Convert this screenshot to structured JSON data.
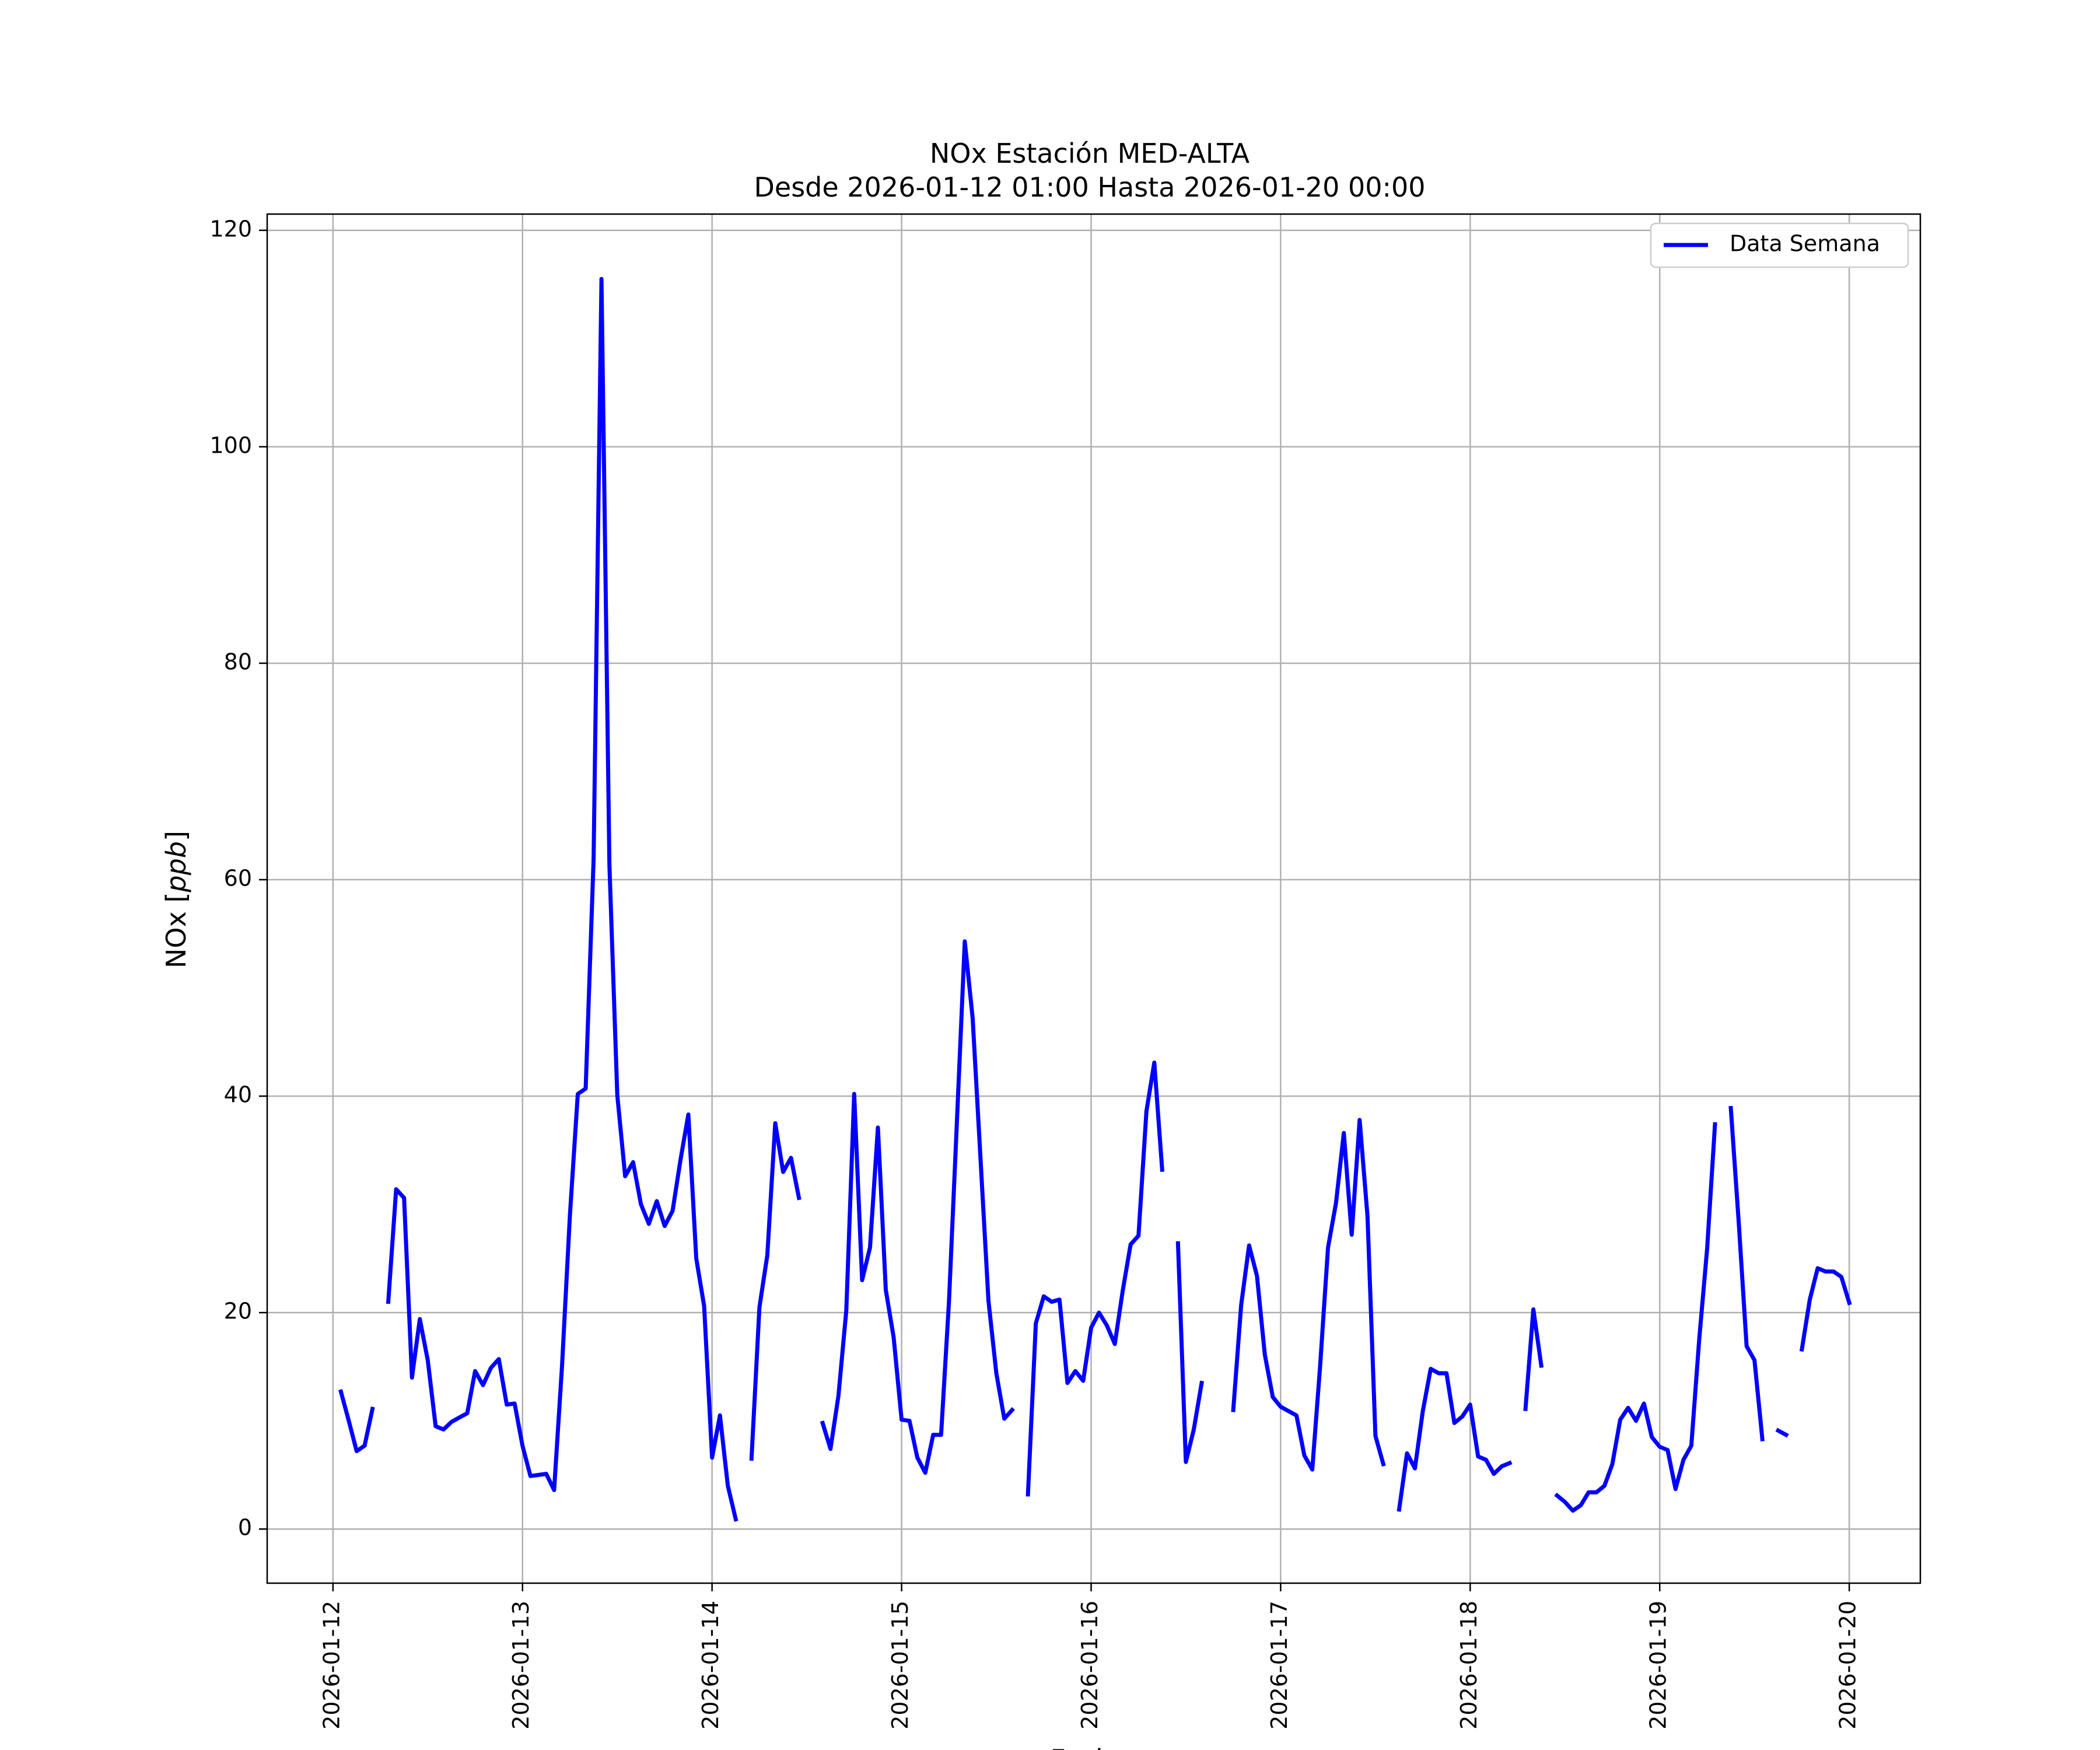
{
  "chart_data": {
    "type": "line",
    "title": "NOx Estación MED-ALTA",
    "subtitle": "Desde 2026-01-12 01:00 Hasta 2026-01-20 00:00",
    "xlabel": "Fecha",
    "ylabel": "NOx [ppb]",
    "ylabel_parts": {
      "prefix": "NOx [",
      "unit": "ppb",
      "suffix": "]"
    },
    "xlim": [
      "2026-01-11T15:40",
      "2026-01-20T09:00"
    ],
    "ylim": [
      -5,
      121.5
    ],
    "x_ticks": [
      "2026-01-12",
      "2026-01-13",
      "2026-01-14",
      "2026-01-15",
      "2026-01-16",
      "2026-01-17",
      "2026-01-18",
      "2026-01-19",
      "2026-01-20"
    ],
    "y_ticks": [
      0,
      20,
      40,
      60,
      80,
      100,
      120
    ],
    "grid": true,
    "legend_position": "upper right",
    "series": [
      {
        "name": "Data Semana",
        "color": "#0000ff",
        "segments": [
          [
            [
              "2026-01-12 01:00",
              12.7
            ],
            [
              "2026-01-12 02:00",
              10.0
            ],
            [
              "2026-01-12 03:00",
              7.2
            ],
            [
              "2026-01-12 04:00",
              7.7
            ],
            [
              "2026-01-12 05:00",
              11.1
            ]
          ],
          [
            [
              "2026-01-12 07:00",
              21.0
            ],
            [
              "2026-01-12 08:00",
              31.4
            ],
            [
              "2026-01-12 09:00",
              30.6
            ],
            [
              "2026-01-12 10:00",
              14.0
            ],
            [
              "2026-01-12 11:00",
              19.4
            ],
            [
              "2026-01-12 12:00",
              15.6
            ],
            [
              "2026-01-12 13:00",
              9.5
            ],
            [
              "2026-01-12 14:00",
              9.2
            ],
            [
              "2026-01-12 15:00",
              9.9
            ],
            [
              "2026-01-12 16:00",
              10.3
            ],
            [
              "2026-01-12 17:00",
              10.7
            ],
            [
              "2026-01-12 18:00",
              14.6
            ],
            [
              "2026-01-12 19:00",
              13.3
            ],
            [
              "2026-01-12 20:00",
              14.9
            ],
            [
              "2026-01-12 21:00",
              15.7
            ],
            [
              "2026-01-12 22:00",
              11.5
            ],
            [
              "2026-01-12 23:00",
              11.6
            ],
            [
              "2026-01-13 00:00",
              7.7
            ],
            [
              "2026-01-13 01:00",
              4.9
            ],
            [
              "2026-01-13 02:00",
              5.0
            ],
            [
              "2026-01-13 03:00",
              5.1
            ],
            [
              "2026-01-13 04:00",
              3.6
            ],
            [
              "2026-01-13 05:00",
              15.0
            ],
            [
              "2026-01-13 06:00",
              29.0
            ],
            [
              "2026-01-13 07:00",
              40.2
            ],
            [
              "2026-01-13 08:00",
              40.7
            ],
            [
              "2026-01-13 09:00",
              61.9
            ],
            [
              "2026-01-13 10:00",
              115.5
            ],
            [
              "2026-01-13 11:00",
              61.4
            ],
            [
              "2026-01-13 12:00",
              40.1
            ],
            [
              "2026-01-13 13:00",
              32.6
            ],
            [
              "2026-01-13 14:00",
              33.9
            ],
            [
              "2026-01-13 15:00",
              30.0
            ],
            [
              "2026-01-13 16:00",
              28.2
            ],
            [
              "2026-01-13 17:00",
              30.3
            ],
            [
              "2026-01-13 18:00",
              28.0
            ],
            [
              "2026-01-13 19:00",
              29.4
            ],
            [
              "2026-01-13 20:00",
              34.1
            ],
            [
              "2026-01-13 21:00",
              38.3
            ],
            [
              "2026-01-13 22:00",
              25.0
            ],
            [
              "2026-01-13 23:00",
              20.6
            ],
            [
              "2026-01-14 00:00",
              6.6
            ],
            [
              "2026-01-14 01:00",
              10.5
            ],
            [
              "2026-01-14 02:00",
              4.0
            ],
            [
              "2026-01-14 03:00",
              0.9
            ]
          ],
          [
            [
              "2026-01-14 05:00",
              6.5
            ],
            [
              "2026-01-14 06:00",
              20.5
            ],
            [
              "2026-01-14 07:00",
              25.3
            ],
            [
              "2026-01-14 08:00",
              37.5
            ],
            [
              "2026-01-14 09:00",
              33.0
            ],
            [
              "2026-01-14 10:00",
              34.3
            ],
            [
              "2026-01-14 11:00",
              30.6
            ]
          ],
          [
            [
              "2026-01-14 14:00",
              9.8
            ],
            [
              "2026-01-14 15:00",
              7.4
            ],
            [
              "2026-01-14 16:00",
              12.3
            ],
            [
              "2026-01-14 17:00",
              20.2
            ],
            [
              "2026-01-14 18:00",
              40.2
            ],
            [
              "2026-01-14 19:00",
              23.0
            ],
            [
              "2026-01-14 20:00",
              26.0
            ],
            [
              "2026-01-14 21:00",
              37.1
            ],
            [
              "2026-01-14 22:00",
              22.1
            ],
            [
              "2026-01-14 23:00",
              17.7
            ],
            [
              "2026-01-15 00:00",
              10.1
            ],
            [
              "2026-01-15 01:00",
              10.0
            ],
            [
              "2026-01-15 02:00",
              6.6
            ],
            [
              "2026-01-15 03:00",
              5.2
            ],
            [
              "2026-01-15 04:00",
              8.7
            ],
            [
              "2026-01-15 05:00",
              8.7
            ],
            [
              "2026-01-15 06:00",
              21.0
            ],
            [
              "2026-01-15 07:00",
              37.5
            ],
            [
              "2026-01-15 08:00",
              54.3
            ],
            [
              "2026-01-15 09:00",
              47.2
            ],
            [
              "2026-01-15 10:00",
              34.1
            ],
            [
              "2026-01-15 11:00",
              21.1
            ],
            [
              "2026-01-15 12:00",
              14.4
            ],
            [
              "2026-01-15 13:00",
              10.2
            ],
            [
              "2026-01-15 14:00",
              11.0
            ]
          ],
          [
            [
              "2026-01-15 16:00",
              3.2
            ],
            [
              "2026-01-15 17:00",
              19.0
            ],
            [
              "2026-01-15 18:00",
              21.5
            ],
            [
              "2026-01-15 19:00",
              21.0
            ],
            [
              "2026-01-15 20:00",
              21.2
            ],
            [
              "2026-01-15 21:00",
              13.5
            ],
            [
              "2026-01-15 22:00",
              14.6
            ],
            [
              "2026-01-15 23:00",
              13.7
            ],
            [
              "2026-01-16 00:00",
              18.6
            ],
            [
              "2026-01-16 01:00",
              20.0
            ],
            [
              "2026-01-16 02:00",
              18.8
            ],
            [
              "2026-01-16 03:00",
              17.1
            ],
            [
              "2026-01-16 04:00",
              22.0
            ],
            [
              "2026-01-16 05:00",
              26.3
            ],
            [
              "2026-01-16 06:00",
              27.1
            ],
            [
              "2026-01-16 07:00",
              38.6
            ],
            [
              "2026-01-16 08:00",
              43.1
            ],
            [
              "2026-01-16 09:00",
              33.2
            ]
          ],
          [
            [
              "2026-01-16 11:00",
              26.4
            ],
            [
              "2026-01-16 12:00",
              6.2
            ],
            [
              "2026-01-16 13:00",
              9.2
            ],
            [
              "2026-01-16 14:00",
              13.5
            ]
          ],
          [
            [
              "2026-01-16 18:00",
              11.0
            ],
            [
              "2026-01-16 19:00",
              20.7
            ],
            [
              "2026-01-16 20:00",
              26.2
            ],
            [
              "2026-01-16 21:00",
              23.4
            ],
            [
              "2026-01-16 22:00",
              16.1
            ],
            [
              "2026-01-16 23:00",
              12.2
            ],
            [
              "2026-01-17 00:00",
              11.3
            ],
            [
              "2026-01-17 01:00",
              10.9
            ],
            [
              "2026-01-17 02:00",
              10.5
            ],
            [
              "2026-01-17 03:00",
              6.8
            ],
            [
              "2026-01-17 04:00",
              5.5
            ],
            [
              "2026-01-17 05:00",
              15.1
            ],
            [
              "2026-01-17 06:00",
              26.0
            ],
            [
              "2026-01-17 07:00",
              30.1
            ],
            [
              "2026-01-17 08:00",
              36.6
            ],
            [
              "2026-01-17 09:00",
              27.2
            ],
            [
              "2026-01-17 10:00",
              37.8
            ],
            [
              "2026-01-17 11:00",
              28.9
            ],
            [
              "2026-01-17 12:00",
              8.6
            ],
            [
              "2026-01-17 13:00",
              6.0
            ]
          ],
          [
            [
              "2026-01-17 15:00",
              1.8
            ],
            [
              "2026-01-17 16:00",
              7.0
            ],
            [
              "2026-01-17 17:00",
              5.6
            ],
            [
              "2026-01-17 18:00",
              10.9
            ],
            [
              "2026-01-17 19:00",
              14.8
            ],
            [
              "2026-01-17 20:00",
              14.4
            ],
            [
              "2026-01-17 21:00",
              14.4
            ],
            [
              "2026-01-17 22:00",
              9.8
            ],
            [
              "2026-01-17 23:00",
              10.4
            ],
            [
              "2026-01-18 00:00",
              11.5
            ],
            [
              "2026-01-18 01:00",
              6.7
            ],
            [
              "2026-01-18 02:00",
              6.4
            ],
            [
              "2026-01-18 03:00",
              5.1
            ],
            [
              "2026-01-18 04:00",
              5.8
            ],
            [
              "2026-01-18 05:00",
              6.1
            ]
          ],
          [
            [
              "2026-01-18 07:00",
              11.1
            ],
            [
              "2026-01-18 08:00",
              20.3
            ],
            [
              "2026-01-18 09:00",
              15.1
            ]
          ],
          [
            [
              "2026-01-18 11:00",
              3.1
            ],
            [
              "2026-01-18 12:00",
              2.5
            ],
            [
              "2026-01-18 13:00",
              1.7
            ],
            [
              "2026-01-18 14:00",
              2.2
            ],
            [
              "2026-01-18 15:00",
              3.4
            ],
            [
              "2026-01-18 16:00",
              3.4
            ],
            [
              "2026-01-18 17:00",
              4.0
            ],
            [
              "2026-01-18 18:00",
              6.0
            ],
            [
              "2026-01-18 19:00",
              10.1
            ],
            [
              "2026-01-18 20:00",
              11.2
            ],
            [
              "2026-01-18 21:00",
              10.0
            ],
            [
              "2026-01-18 22:00",
              11.6
            ],
            [
              "2026-01-18 23:00",
              8.5
            ],
            [
              "2026-01-19 00:00",
              7.6
            ],
            [
              "2026-01-19 01:00",
              7.3
            ],
            [
              "2026-01-19 02:00",
              3.7
            ],
            [
              "2026-01-19 03:00",
              6.4
            ],
            [
              "2026-01-19 04:00",
              7.7
            ],
            [
              "2026-01-19 05:00",
              17.5
            ],
            [
              "2026-01-19 06:00",
              25.9
            ],
            [
              "2026-01-19 07:00",
              37.4
            ]
          ],
          [
            [
              "2026-01-19 09:00",
              38.9
            ],
            [
              "2026-01-19 10:00",
              28.4
            ],
            [
              "2026-01-19 11:00",
              16.9
            ],
            [
              "2026-01-19 12:00",
              15.6
            ],
            [
              "2026-01-19 13:00",
              8.3
            ]
          ],
          [
            [
              "2026-01-19 15:00",
              9.1
            ],
            [
              "2026-01-19 16:00",
              8.7
            ]
          ],
          [
            [
              "2026-01-19 18:00",
              16.6
            ],
            [
              "2026-01-19 19:00",
              21.2
            ],
            [
              "2026-01-19 20:00",
              24.1
            ],
            [
              "2026-01-19 21:00",
              23.8
            ],
            [
              "2026-01-19 22:00",
              23.8
            ],
            [
              "2026-01-19 23:00",
              23.3
            ],
            [
              "2026-01-20 00:00",
              20.9
            ]
          ]
        ]
      }
    ]
  }
}
